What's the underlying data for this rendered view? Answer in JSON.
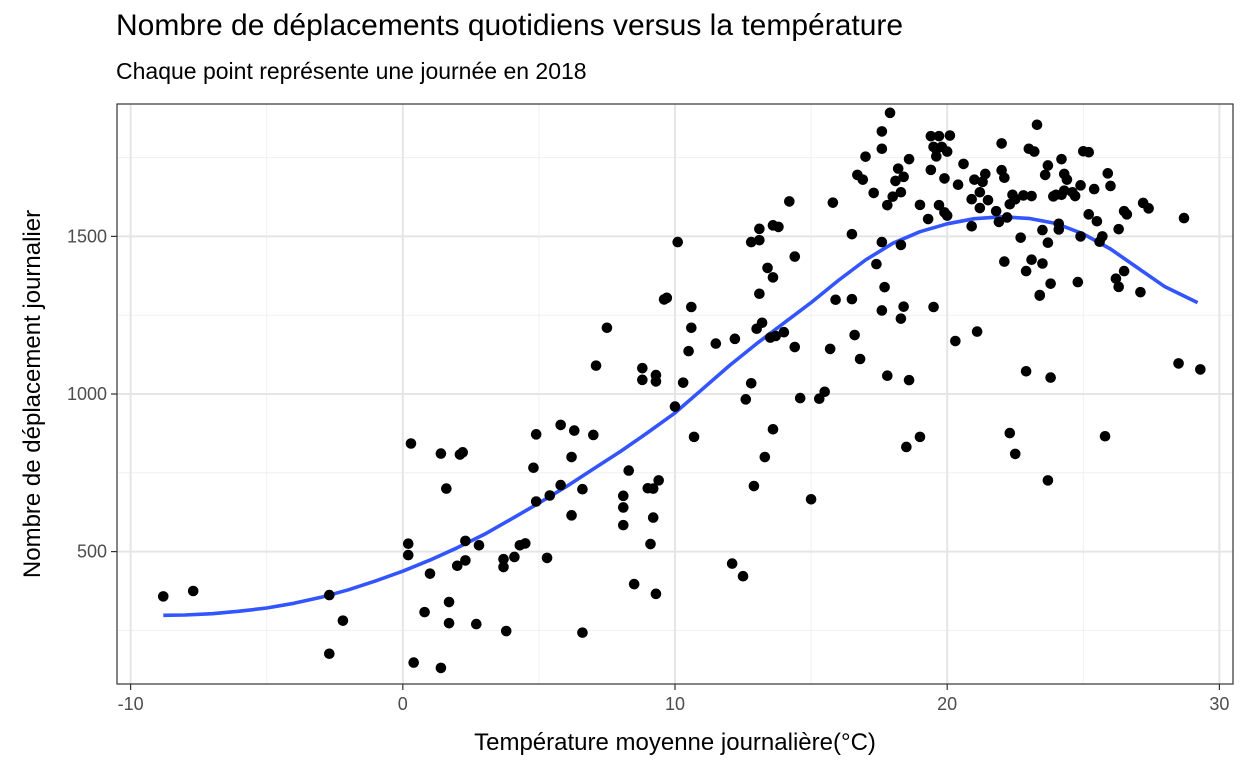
{
  "chart_data": {
    "type": "scatter",
    "title": "Nombre de déplacements quotidiens versus la température",
    "subtitle": "Chaque point représente une journée en 2018",
    "xlabel": "Température moyenne journalière(°C)",
    "ylabel": "Nombre de déplacement journalier",
    "xlim": [
      -10.5,
      30.5
    ],
    "ylim": [
      80,
      1920
    ],
    "x_ticks": [
      -10,
      0,
      10,
      20,
      30
    ],
    "x_tick_labels": [
      "-10",
      "0",
      "10",
      "20",
      "30"
    ],
    "y_ticks": [
      500,
      1000,
      1500
    ],
    "y_tick_labels": [
      "500",
      "1000",
      "1500"
    ],
    "grid": true,
    "legend": "none",
    "colors": {
      "points": "#000000",
      "smooth": "#3355ff",
      "grid_major": "#e5e5e5",
      "grid_minor": "#f0f0f0",
      "panel_border": "#333333"
    },
    "series": [
      {
        "type": "scatter",
        "points": [
          [
            -8.8,
            358
          ],
          [
            -7.7,
            375
          ],
          [
            -2.7,
            362
          ],
          [
            -2.7,
            176
          ],
          [
            -2.2,
            281
          ],
          [
            0.2,
            525
          ],
          [
            0.2,
            489
          ],
          [
            0.3,
            843
          ],
          [
            0.4,
            148
          ],
          [
            0.8,
            308
          ],
          [
            1.0,
            430
          ],
          [
            1.4,
            131
          ],
          [
            1.4,
            811
          ],
          [
            1.6,
            700
          ],
          [
            1.7,
            340
          ],
          [
            1.7,
            273
          ],
          [
            2.0,
            455
          ],
          [
            2.1,
            808
          ],
          [
            2.2,
            815
          ],
          [
            2.3,
            534
          ],
          [
            2.3,
            472
          ],
          [
            2.7,
            270
          ],
          [
            2.8,
            520
          ],
          [
            3.7,
            476
          ],
          [
            3.7,
            451
          ],
          [
            3.8,
            248
          ],
          [
            4.1,
            483
          ],
          [
            4.3,
            520
          ],
          [
            4.5,
            526
          ],
          [
            4.8,
            766
          ],
          [
            4.9,
            659
          ],
          [
            4.9,
            872
          ],
          [
            5.3,
            480
          ],
          [
            5.4,
            678
          ],
          [
            5.8,
            711
          ],
          [
            5.8,
            902
          ],
          [
            6.2,
            615
          ],
          [
            6.2,
            800
          ],
          [
            6.3,
            884
          ],
          [
            6.6,
            698
          ],
          [
            6.6,
            243
          ],
          [
            7.0,
            870
          ],
          [
            7.1,
            1090
          ],
          [
            7.5,
            1210
          ],
          [
            8.1,
            677
          ],
          [
            8.1,
            584
          ],
          [
            8.1,
            640
          ],
          [
            8.3,
            757
          ],
          [
            8.5,
            397
          ],
          [
            8.8,
            1045
          ],
          [
            8.8,
            1082
          ],
          [
            9.0,
            701
          ],
          [
            9.1,
            524
          ],
          [
            9.2,
            608
          ],
          [
            9.2,
            700
          ],
          [
            9.3,
            366
          ],
          [
            9.3,
            1040
          ],
          [
            9.3,
            1060
          ],
          [
            9.4,
            726
          ],
          [
            9.6,
            1300
          ],
          [
            9.7,
            1305
          ],
          [
            10.0,
            960
          ],
          [
            10.1,
            1482
          ],
          [
            10.3,
            1036
          ],
          [
            10.5,
            1136
          ],
          [
            10.6,
            1210
          ],
          [
            10.6,
            1276
          ],
          [
            10.7,
            864
          ],
          [
            11.5,
            1160
          ],
          [
            12.1,
            462
          ],
          [
            12.2,
            1175
          ],
          [
            12.5,
            422
          ],
          [
            12.6,
            983
          ],
          [
            12.8,
            1034
          ],
          [
            12.8,
            1482
          ],
          [
            12.9,
            708
          ],
          [
            13.0,
            1207
          ],
          [
            13.1,
            1488
          ],
          [
            13.1,
            1318
          ],
          [
            13.1,
            1524
          ],
          [
            13.2,
            1226
          ],
          [
            13.3,
            800
          ],
          [
            13.4,
            1400
          ],
          [
            13.5,
            1179
          ],
          [
            13.6,
            1370
          ],
          [
            13.6,
            888
          ],
          [
            13.6,
            1535
          ],
          [
            13.7,
            1184
          ],
          [
            13.8,
            1530
          ],
          [
            14.0,
            1196
          ],
          [
            14.2,
            1611
          ],
          [
            14.4,
            1436
          ],
          [
            14.4,
            1149
          ],
          [
            14.6,
            987
          ],
          [
            15.0,
            666
          ],
          [
            15.3,
            985
          ],
          [
            15.5,
            1007
          ],
          [
            15.7,
            1143
          ],
          [
            15.8,
            1607
          ],
          [
            15.9,
            1299
          ],
          [
            16.5,
            1301
          ],
          [
            16.5,
            1507
          ],
          [
            16.6,
            1187
          ],
          [
            16.7,
            1695
          ],
          [
            16.8,
            1111
          ],
          [
            16.9,
            1680
          ],
          [
            17.0,
            1753
          ],
          [
            17.3,
            1638
          ],
          [
            17.4,
            1412
          ],
          [
            17.6,
            1778
          ],
          [
            17.6,
            1833
          ],
          [
            17.6,
            1482
          ],
          [
            17.6,
            1265
          ],
          [
            17.7,
            1339
          ],
          [
            17.8,
            1058
          ],
          [
            17.8,
            1599
          ],
          [
            17.9,
            1892
          ],
          [
            18.0,
            1626
          ],
          [
            18.1,
            1676
          ],
          [
            18.2,
            1715
          ],
          [
            18.3,
            1640
          ],
          [
            18.3,
            1239
          ],
          [
            18.3,
            1473
          ],
          [
            18.4,
            1277
          ],
          [
            18.4,
            1689
          ],
          [
            18.5,
            832
          ],
          [
            18.6,
            1745
          ],
          [
            18.6,
            1044
          ],
          [
            19.0,
            864
          ],
          [
            19.3,
            1555
          ],
          [
            19.4,
            1818
          ],
          [
            19.4,
            1711
          ],
          [
            19.5,
            1784
          ],
          [
            19.5,
            1276
          ],
          [
            19.6,
            1776
          ],
          [
            19.6,
            1754
          ],
          [
            19.7,
            1818
          ],
          [
            19.7,
            1599
          ],
          [
            19.8,
            1784
          ],
          [
            19.9,
            1684
          ],
          [
            19.9,
            1576
          ],
          [
            20.0,
            1769
          ],
          [
            20.1,
            1820
          ],
          [
            20.3,
            1168
          ],
          [
            20.4,
            1664
          ],
          [
            20.6,
            1730
          ],
          [
            20.9,
            1618
          ],
          [
            20.9,
            1532
          ],
          [
            21.1,
            1198
          ],
          [
            21.2,
            1640
          ],
          [
            21.2,
            1590
          ],
          [
            21.3,
            1673
          ],
          [
            21.4,
            1698
          ],
          [
            21.8,
            1580
          ],
          [
            21.9,
            1546
          ],
          [
            22.0,
            1795
          ],
          [
            22.0,
            1710
          ],
          [
            22.1,
            1420
          ],
          [
            22.1,
            1686
          ],
          [
            22.2,
            1560
          ],
          [
            22.3,
            1602
          ],
          [
            22.3,
            876
          ],
          [
            22.5,
            810
          ],
          [
            22.5,
            1618
          ],
          [
            22.7,
            1496
          ],
          [
            22.8,
            1630
          ],
          [
            22.9,
            1072
          ],
          [
            22.9,
            1390
          ],
          [
            23.0,
            1778
          ],
          [
            23.1,
            1426
          ],
          [
            23.2,
            1769
          ],
          [
            23.3,
            1854
          ],
          [
            23.4,
            1314
          ],
          [
            23.5,
            1414
          ],
          [
            23.5,
            1520
          ],
          [
            23.6,
            1695
          ],
          [
            23.7,
            1480
          ],
          [
            23.7,
            1725
          ],
          [
            23.8,
            1350
          ],
          [
            23.9,
            1627
          ],
          [
            24.0,
            1632
          ],
          [
            24.1,
            1522
          ],
          [
            24.1,
            1540
          ],
          [
            24.2,
            1745
          ],
          [
            24.2,
            1632
          ],
          [
            24.3,
            1698
          ],
          [
            24.3,
            1645
          ],
          [
            24.4,
            1680
          ],
          [
            24.6,
            1640
          ],
          [
            24.7,
            1628
          ],
          [
            24.8,
            1355
          ],
          [
            24.9,
            1500
          ],
          [
            25.0,
            1770
          ],
          [
            25.2,
            1570
          ],
          [
            25.2,
            1767
          ],
          [
            25.4,
            1650
          ],
          [
            25.5,
            1548
          ],
          [
            25.6,
            1483
          ],
          [
            25.7,
            1500
          ],
          [
            25.8,
            866
          ],
          [
            25.9,
            1700
          ],
          [
            26.0,
            1660
          ],
          [
            26.2,
            1366
          ],
          [
            26.3,
            1523
          ],
          [
            26.3,
            1340
          ],
          [
            26.5,
            1580
          ],
          [
            26.5,
            1390
          ],
          [
            26.6,
            1570
          ],
          [
            27.1,
            1323
          ],
          [
            27.2,
            1606
          ],
          [
            27.4,
            1589
          ],
          [
            28.5,
            1097
          ],
          [
            28.7,
            1558
          ],
          [
            29.3,
            1078
          ],
          [
            23.4,
            1312
          ],
          [
            23.7,
            726
          ],
          [
            23.8,
            1052
          ],
          [
            21.5,
            1615
          ],
          [
            20.0,
            1566
          ],
          [
            19.0,
            1600
          ],
          [
            23.1,
            1628
          ],
          [
            24.9,
            1662
          ],
          [
            22.4,
            1632
          ],
          [
            21.0,
            1680
          ]
        ]
      },
      {
        "type": "smooth-line",
        "points": [
          [
            -8.8,
            298
          ],
          [
            -8,
            299
          ],
          [
            -7,
            303
          ],
          [
            -6,
            311
          ],
          [
            -5,
            321
          ],
          [
            -4,
            336
          ],
          [
            -3,
            355
          ],
          [
            -2,
            379
          ],
          [
            -1,
            407
          ],
          [
            0,
            438
          ],
          [
            1,
            473
          ],
          [
            2,
            512
          ],
          [
            3,
            555
          ],
          [
            4,
            604
          ],
          [
            5,
            654
          ],
          [
            6,
            706
          ],
          [
            7,
            762
          ],
          [
            8,
            818
          ],
          [
            9,
            878
          ],
          [
            10,
            940
          ],
          [
            11,
            1015
          ],
          [
            12,
            1090
          ],
          [
            13,
            1160
          ],
          [
            14,
            1225
          ],
          [
            15,
            1290
          ],
          [
            16,
            1360
          ],
          [
            17,
            1425
          ],
          [
            18,
            1478
          ],
          [
            19,
            1515
          ],
          [
            20,
            1540
          ],
          [
            21,
            1556
          ],
          [
            22,
            1562
          ],
          [
            23,
            1557
          ],
          [
            24,
            1541
          ],
          [
            25,
            1508
          ],
          [
            26,
            1460
          ],
          [
            27,
            1400
          ],
          [
            28,
            1340
          ],
          [
            29.2,
            1290
          ]
        ]
      }
    ]
  }
}
